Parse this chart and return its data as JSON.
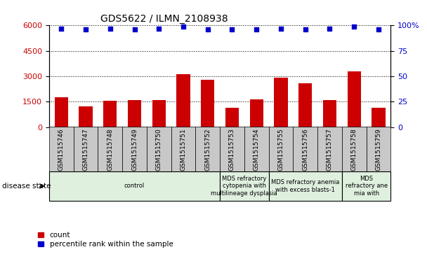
{
  "title": "GDS5622 / ILMN_2108938",
  "categories": [
    "GSM1515746",
    "GSM1515747",
    "GSM1515748",
    "GSM1515749",
    "GSM1515750",
    "GSM1515751",
    "GSM1515752",
    "GSM1515753",
    "GSM1515754",
    "GSM1515755",
    "GSM1515756",
    "GSM1515757",
    "GSM1515758",
    "GSM1515759"
  ],
  "counts": [
    1750,
    1200,
    1550,
    1600,
    1600,
    3100,
    2800,
    1150,
    1650,
    2900,
    2600,
    1600,
    3300,
    1150
  ],
  "percentiles": [
    97,
    96,
    97,
    96,
    97,
    99,
    96,
    96,
    96,
    97,
    96,
    97,
    99,
    96
  ],
  "bar_color": "#cc0000",
  "dot_color": "#0000cc",
  "ylim_left": [
    0,
    6000
  ],
  "ylim_right": [
    0,
    100
  ],
  "yticks_left": [
    0,
    1500,
    3000,
    4500,
    6000
  ],
  "yticks_right": [
    0,
    25,
    50,
    75,
    100
  ],
  "disease_groups": [
    {
      "label": "control",
      "start": 0,
      "end": 7,
      "color": "#dff0df"
    },
    {
      "label": "MDS refractory\ncytopenia with\nmultilineage dysplasia",
      "start": 7,
      "end": 9,
      "color": "#dff0df"
    },
    {
      "label": "MDS refractory anemia\nwith excess blasts-1",
      "start": 9,
      "end": 12,
      "color": "#dff0df"
    },
    {
      "label": "MDS\nrefractory ane\nmia with",
      "start": 12,
      "end": 14,
      "color": "#dff0df"
    }
  ],
  "disease_state_label": "disease state",
  "legend_count_label": "count",
  "legend_percentile_label": "percentile rank within the sample",
  "tick_label_color_left": "#cc0000",
  "tick_label_color_right": "#0000cc",
  "xlabel_box_color": "#c8c8c8",
  "bg_color": "#ffffff"
}
